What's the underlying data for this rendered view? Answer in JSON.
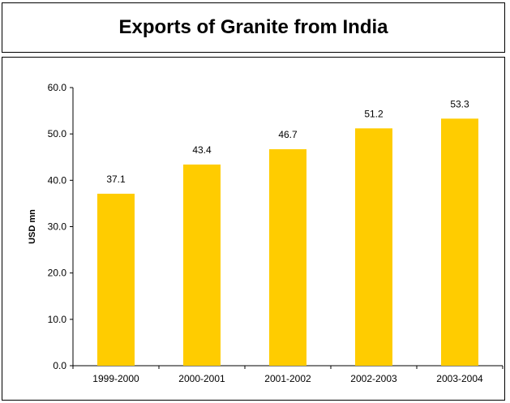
{
  "title": "Exports of Granite from India",
  "chart_data": {
    "type": "bar",
    "title": "Exports of Granite from India",
    "categories": [
      "1999-2000",
      "2000-2001",
      "2001-2002",
      "2002-2003",
      "2003-2004"
    ],
    "values": [
      37.1,
      43.4,
      46.7,
      51.2,
      53.3
    ],
    "value_labels": [
      "37.1",
      "43.4",
      "46.7",
      "51.2",
      "53.3"
    ],
    "xlabel": "",
    "ylabel": "USD mn",
    "ylim": [
      0,
      60
    ],
    "yticks": [
      "0.0",
      "10.0",
      "20.0",
      "30.0",
      "40.0",
      "50.0",
      "60.0"
    ],
    "bar_color": "#FFCC00",
    "grid": false,
    "legend": "none"
  }
}
